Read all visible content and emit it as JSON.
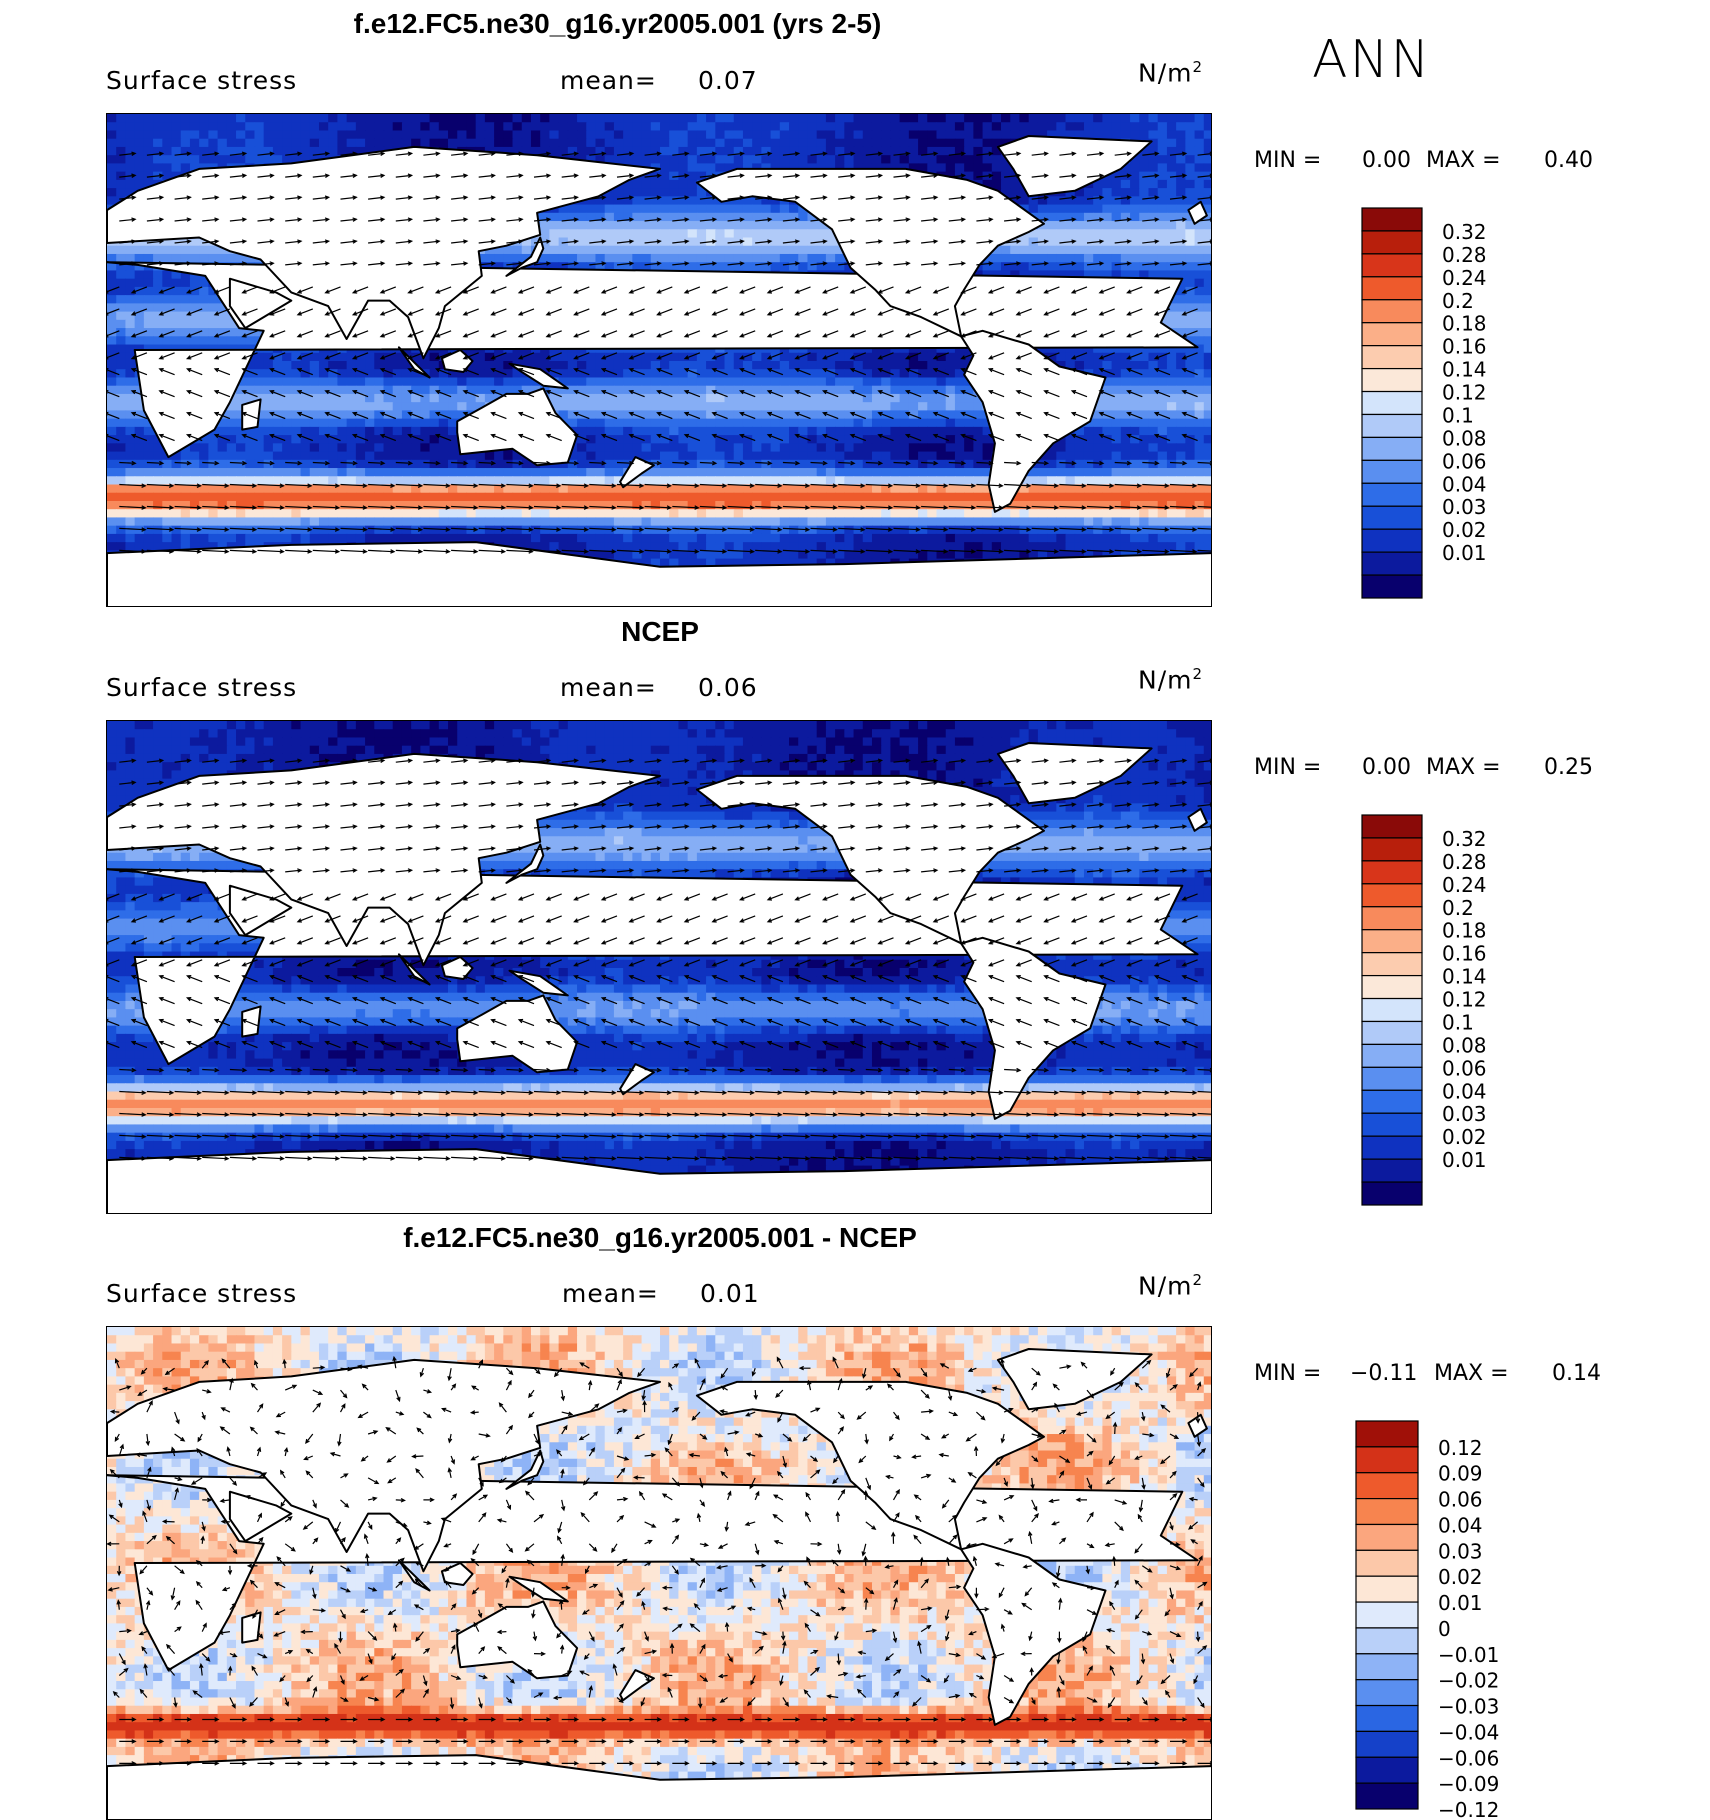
{
  "season": "ANN",
  "colors": {
    "abs_scale": [
      "#08006d",
      "#0c1a9e",
      "#0f32c0",
      "#1850d8",
      "#2e6de8",
      "#5a8ff0",
      "#86aef5",
      "#b0caf8",
      "#d3e4fb",
      "#fbe8d9",
      "#fcccaf",
      "#fbaf88",
      "#f88a5c",
      "#ee5a2c",
      "#d8351a",
      "#b81f0c",
      "#8a0a08"
    ],
    "diff_scale": [
      "#08006d",
      "#0c1a9e",
      "#1541c9",
      "#2a66e3",
      "#5a8ff0",
      "#8eb3f6",
      "#b9d0f9",
      "#dfeafc",
      "#fde7d6",
      "#fcc8a9",
      "#fba67e",
      "#f7844f",
      "#ee5a2c",
      "#d43218",
      "#a01008"
    ]
  },
  "panels": [
    {
      "title": "f.e12.FC5.ne30_g16.yr2005.001 (yrs 2-5)",
      "field": "Surface stress",
      "mean_label": "mean=",
      "mean_value": "0.07",
      "unit": "N/m",
      "unit_sup": "2",
      "min_label": "MIN =",
      "min_value": "0.00",
      "max_label": "MAX =",
      "max_value": "0.40",
      "scale": "abs"
    },
    {
      "title": "NCEP",
      "field": "Surface stress",
      "mean_label": "mean=",
      "mean_value": "0.06",
      "unit": "N/m",
      "unit_sup": "2",
      "min_label": "MIN =",
      "min_value": "0.00",
      "max_label": "MAX =",
      "max_value": "0.25",
      "scale": "abs"
    },
    {
      "title": "f.e12.FC5.ne30_g16.yr2005.001 - NCEP",
      "field": "Surface stress",
      "mean_label": "mean=",
      "mean_value": "0.01",
      "unit": "N/m",
      "unit_sup": "2",
      "min_label": "MIN =",
      "min_value": "−0.11",
      "max_label": "MAX =",
      "max_value": "0.14",
      "scale": "diff"
    }
  ],
  "chart_data": [
    {
      "type": "heatmap",
      "title": "f.e12.FC5.ne30_g16.yr2005.001 (yrs 2-5)",
      "variable": "Surface stress",
      "units": "N/m2",
      "mean": 0.07,
      "min": 0.0,
      "max": 0.4,
      "colorbar_levels": [
        "0.32",
        "0.28",
        "0.24",
        "0.2",
        "0.18",
        "0.16",
        "0.14",
        "0.12",
        "0.1",
        "0.08",
        "0.06",
        "0.04",
        "0.03",
        "0.02",
        "0.01"
      ],
      "vectors": true
    },
    {
      "type": "heatmap",
      "title": "NCEP",
      "variable": "Surface stress",
      "units": "N/m2",
      "mean": 0.06,
      "min": 0.0,
      "max": 0.25,
      "colorbar_levels": [
        "0.32",
        "0.28",
        "0.24",
        "0.2",
        "0.18",
        "0.16",
        "0.14",
        "0.12",
        "0.1",
        "0.08",
        "0.06",
        "0.04",
        "0.03",
        "0.02",
        "0.01"
      ],
      "vectors": true
    },
    {
      "type": "heatmap",
      "title": "f.e12.FC5.ne30_g16.yr2005.001 - NCEP",
      "variable": "Surface stress",
      "units": "N/m2",
      "mean": 0.01,
      "min": -0.11,
      "max": 0.14,
      "colorbar_levels": [
        "0.12",
        "0.09",
        "0.06",
        "0.04",
        "0.03",
        "0.02",
        "0.01",
        "0",
        "−0.01",
        "−0.02",
        "−0.03",
        "−0.04",
        "−0.06",
        "−0.09",
        "−0.12"
      ],
      "vectors": true
    }
  ]
}
